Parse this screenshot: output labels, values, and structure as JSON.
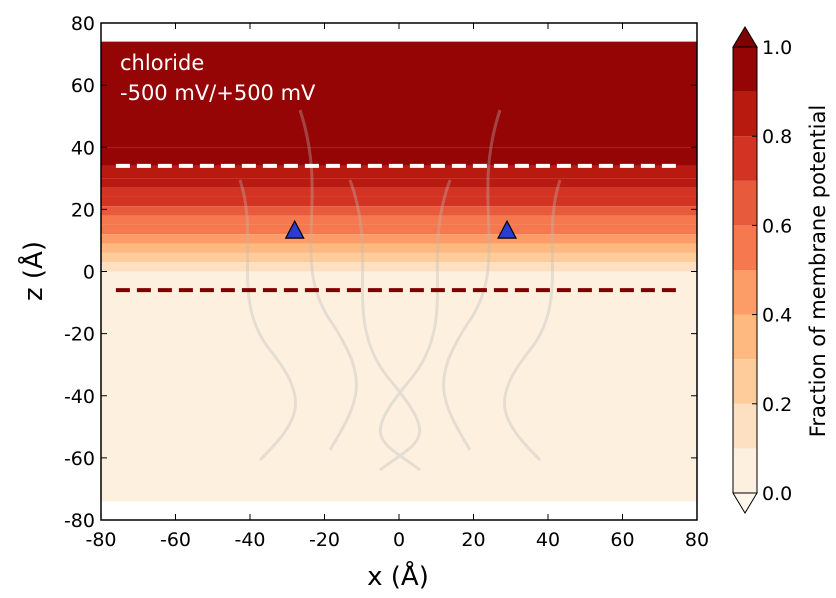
{
  "chart_data": {
    "type": "contour",
    "annotations": [
      "chloride",
      "-500 mV/+500 mV"
    ],
    "xlabel": "x (Å)",
    "ylabel": "z (Å)",
    "xlim": [
      -80,
      80
    ],
    "ylim": [
      -80,
      80
    ],
    "xticks": [
      -80,
      -60,
      -40,
      -20,
      0,
      20,
      40,
      60,
      80
    ],
    "yticks": [
      -80,
      -60,
      -40,
      -20,
      0,
      20,
      40,
      60,
      80
    ],
    "field": {
      "z": [
        74,
        40,
        34,
        30,
        27,
        24,
        21,
        18,
        15,
        12,
        9,
        6,
        3,
        0,
        -74
      ],
      "values": [
        0.97,
        0.93,
        0.88,
        0.83,
        0.78,
        0.72,
        0.65,
        0.58,
        0.5,
        0.42,
        0.33,
        0.2,
        0.1,
        0.03
      ]
    },
    "hlines": [
      {
        "y": 34,
        "color": "#ffffff"
      },
      {
        "y": -6,
        "color": "#7f0000"
      }
    ],
    "markers": {
      "x": [
        -28,
        29
      ],
      "y": [
        13,
        13
      ],
      "color": "#2a3bd6"
    },
    "colorbar": {
      "label": "Fraction of membrane potential",
      "levels": [
        0,
        0.1,
        0.2,
        0.3,
        0.4,
        0.5,
        0.6,
        0.7,
        0.8,
        0.9,
        1.0
      ],
      "colors": [
        "#fef0df",
        "#fde0c2",
        "#fdcc9a",
        "#fdb97f",
        "#fc9c66",
        "#f5784f",
        "#e85a3c",
        "#d33322",
        "#b81a0f",
        "#950505"
      ],
      "over_color": "#7f0000",
      "under_color": "#fff7ec",
      "ticks": [
        {
          "value": 0,
          "label": "0.0"
        },
        0.2,
        0.4,
        0.6,
        0.8,
        {
          "value": 1,
          "label": "1.0"
        }
      ]
    }
  }
}
